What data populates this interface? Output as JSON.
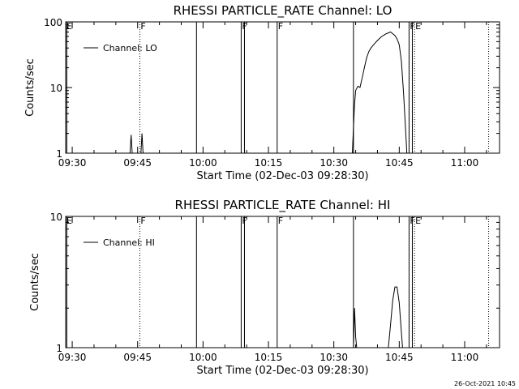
{
  "chart_data": [
    {
      "type": "line",
      "title": "RHESSI PARTICLE_RATE Channel: LO",
      "xlabel": "Start Time (02-Dec-03 09:28:30)",
      "ylabel": "Counts/sec",
      "yscale": "log",
      "ylim": [
        1,
        100
      ],
      "yticks": [
        "1",
        "10",
        "100"
      ],
      "xlim": [
        "09:28:30",
        "11:08:00"
      ],
      "xticks": [
        "09:30",
        "09:45",
        "10:00",
        "10:15",
        "10:30",
        "10:45",
        "11:00"
      ],
      "grid": false,
      "legend": {
        "position": "top-left",
        "entries": [
          "Channel: LO"
        ]
      },
      "markers": [
        {
          "time": "09:28:45",
          "label": "E",
          "style": "solid"
        },
        {
          "time": "09:45:30",
          "label": "F",
          "style": "dotted"
        },
        {
          "time": "09:58:30",
          "label": "",
          "style": "solid"
        },
        {
          "time": "10:08:45",
          "label": "F",
          "style": "solid"
        },
        {
          "time": "10:09:30",
          "label": "",
          "style": "solid"
        },
        {
          "time": "10:17:00",
          "label": "F",
          "style": "solid"
        },
        {
          "time": "10:34:30",
          "label": "",
          "style": "solid"
        },
        {
          "time": "10:47:15",
          "label": "F",
          "style": "solid"
        },
        {
          "time": "10:48:00",
          "label": "",
          "style": "solid"
        },
        {
          "time": "10:48:30",
          "label": "E",
          "style": "dotted"
        },
        {
          "time": "11:05:30",
          "label": "",
          "style": "dotted"
        }
      ],
      "series": [
        {
          "name": "Channel: LO",
          "segments": [
            [
              [
                "09:43:15",
                1
              ],
              [
                "09:43:30",
                1.9
              ],
              [
                "09:43:45",
                1
              ]
            ],
            [
              [
                "09:45:45",
                1
              ],
              [
                "09:46:00",
                2.0
              ],
              [
                "09:46:15",
                1
              ]
            ],
            [
              [
                "10:34:15",
                1
              ],
              [
                "10:34:30",
                2.5
              ],
              [
                "10:34:45",
                5.5
              ],
              [
                "10:35:00",
                9
              ],
              [
                "10:35:30",
                10.5
              ],
              [
                "10:36:00",
                10
              ],
              [
                "10:36:30",
                14
              ],
              [
                "10:37:00",
                20
              ],
              [
                "10:37:30",
                28
              ],
              [
                "10:38:00",
                35
              ],
              [
                "10:38:30",
                40
              ],
              [
                "10:39:00",
                44
              ],
              [
                "10:39:30",
                48
              ],
              [
                "10:40:00",
                52
              ],
              [
                "10:40:30",
                56
              ],
              [
                "10:41:00",
                60
              ],
              [
                "10:41:30",
                63
              ],
              [
                "10:42:00",
                66
              ],
              [
                "10:42:30",
                68
              ],
              [
                "10:43:00",
                70
              ],
              [
                "10:43:30",
                66
              ],
              [
                "10:44:00",
                62
              ],
              [
                "10:44:30",
                55
              ],
              [
                "10:45:00",
                45
              ],
              [
                "10:45:30",
                25
              ],
              [
                "10:46:00",
                8
              ],
              [
                "10:46:30",
                2
              ],
              [
                "10:46:45",
                1
              ]
            ]
          ]
        }
      ]
    },
    {
      "type": "line",
      "title": "RHESSI PARTICLE_RATE Channel: HI",
      "xlabel": "Start Time (02-Dec-03 09:28:30)",
      "ylabel": "Counts/sec",
      "yscale": "log",
      "ylim": [
        1,
        10
      ],
      "yticks": [
        "1",
        "10"
      ],
      "xlim": [
        "09:28:30",
        "11:08:00"
      ],
      "xticks": [
        "09:30",
        "09:45",
        "10:00",
        "10:15",
        "10:30",
        "10:45",
        "11:00"
      ],
      "grid": false,
      "legend": {
        "position": "top-left",
        "entries": [
          "Channel: HI"
        ]
      },
      "markers": [
        {
          "time": "09:28:45",
          "label": "E",
          "style": "solid"
        },
        {
          "time": "09:45:30",
          "label": "F",
          "style": "dotted"
        },
        {
          "time": "09:58:30",
          "label": "",
          "style": "solid"
        },
        {
          "time": "10:08:45",
          "label": "F",
          "style": "solid"
        },
        {
          "time": "10:09:30",
          "label": "",
          "style": "solid"
        },
        {
          "time": "10:17:00",
          "label": "F",
          "style": "solid"
        },
        {
          "time": "10:34:30",
          "label": "",
          "style": "solid"
        },
        {
          "time": "10:47:15",
          "label": "F",
          "style": "solid"
        },
        {
          "time": "10:48:00",
          "label": "",
          "style": "solid"
        },
        {
          "time": "10:48:30",
          "label": "E",
          "style": "dotted"
        },
        {
          "time": "11:05:30",
          "label": "",
          "style": "dotted"
        }
      ],
      "series": [
        {
          "name": "Channel: HI",
          "segments": [
            [
              [
                "10:34:30",
                1
              ],
              [
                "10:34:45",
                2.0
              ],
              [
                "10:35:00",
                1.2
              ],
              [
                "10:35:15",
                1
              ]
            ],
            [
              [
                "10:42:30",
                1
              ],
              [
                "10:43:00",
                1.5
              ],
              [
                "10:43:30",
                2.3
              ],
              [
                "10:44:00",
                2.9
              ],
              [
                "10:44:30",
                2.9
              ],
              [
                "10:45:00",
                2.2
              ],
              [
                "10:45:30",
                1.3
              ],
              [
                "10:45:45",
                1
              ]
            ]
          ]
        }
      ]
    }
  ],
  "footer": {
    "timestamp": "26-Oct-2021 10:45"
  }
}
